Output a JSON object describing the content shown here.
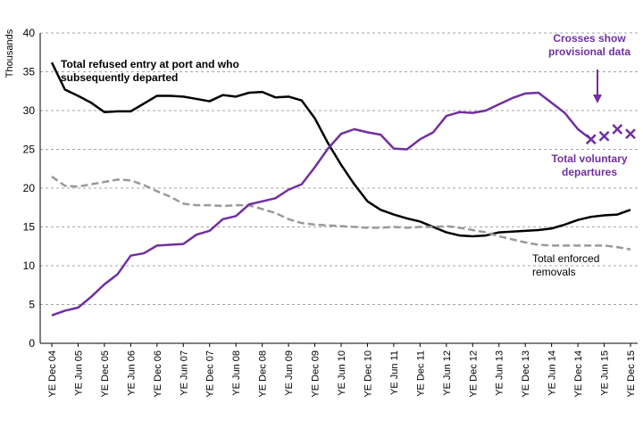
{
  "chart_data": {
    "type": "line",
    "y_label": "Thousands",
    "categories": [
      "YE Dec 04",
      null,
      "YE Jun 05",
      null,
      "YE Dec 05",
      null,
      "YE Jun 06",
      null,
      "YE Dec 06",
      null,
      "YE Jun 07",
      null,
      "YE Dec 07",
      null,
      "YE Jun 08",
      null,
      "YE Dec 08",
      null,
      "YE Jun 09",
      null,
      "YE Dec 09",
      null,
      "YE Jun 10",
      null,
      "YE Dec 10",
      null,
      "YE Jun 11",
      null,
      "YE Dec 11",
      null,
      "YE Jun 12",
      null,
      "YE Dec 12",
      null,
      "YE Jun 13",
      null,
      "YE Dec 13",
      null,
      "YE Jun 14",
      null,
      "YE Dec 14",
      null,
      "YE Jun 15",
      null,
      "YE Dec 15"
    ],
    "series": [
      {
        "color": "#000000",
        "style": "solid",
        "values": [
          36.2,
          32.7,
          31.9,
          31.0,
          29.8,
          29.9,
          29.9,
          30.9,
          31.9,
          31.9,
          31.8,
          31.5,
          31.2,
          32.0,
          31.8,
          32.3,
          32.4,
          31.7,
          31.8,
          31.3,
          29.0,
          25.8,
          23.0,
          20.5,
          18.3,
          17.2,
          16.6,
          16.1,
          15.7,
          15.0,
          14.3,
          13.9,
          13.8,
          13.9,
          14.3,
          14.4,
          14.5,
          14.6,
          14.8,
          15.3,
          15.9,
          16.3,
          16.5,
          16.6,
          17.2
        ]
      },
      {
        "color": "#999999",
        "style": "dashed",
        "values": [
          21.5,
          20.3,
          20.2,
          20.5,
          20.8,
          21.1,
          21.0,
          20.4,
          19.6,
          18.9,
          18.0,
          17.8,
          17.8,
          17.7,
          17.8,
          17.8,
          17.3,
          16.8,
          16.0,
          15.5,
          15.3,
          15.2,
          15.1,
          15.0,
          14.9,
          14.9,
          15.0,
          14.9,
          15.0,
          15.0,
          15.1,
          14.9,
          14.6,
          14.3,
          13.8,
          13.4,
          13.0,
          12.7,
          12.6,
          12.6,
          12.6,
          12.6,
          12.6,
          12.4,
          12.1
        ]
      },
      {
        "color": "#7030a0",
        "style": "solid",
        "values": [
          3.6,
          4.2,
          4.6,
          6.0,
          7.6,
          8.9,
          11.3,
          11.6,
          12.6,
          12.7,
          12.8,
          14.0,
          14.5,
          16.0,
          16.4,
          17.9,
          18.3,
          18.7,
          19.8,
          20.5,
          22.7,
          25.1,
          27.0,
          27.6,
          27.2,
          26.9,
          25.1,
          25.0,
          26.3,
          27.2,
          29.3,
          29.8,
          29.7,
          30.0,
          30.8,
          31.6,
          32.2,
          32.3,
          31.0,
          29.7,
          27.6,
          26.3,
          null,
          null,
          null
        ]
      },
      {
        "color": "#7030a0",
        "style": "cross",
        "values": [
          null,
          null,
          null,
          null,
          null,
          null,
          null,
          null,
          null,
          null,
          null,
          null,
          null,
          null,
          null,
          null,
          null,
          null,
          null,
          null,
          null,
          null,
          null,
          null,
          null,
          null,
          null,
          null,
          null,
          null,
          null,
          null,
          null,
          null,
          null,
          null,
          null,
          null,
          null,
          null,
          null,
          26.3,
          26.7,
          27.6,
          27.0
        ]
      }
    ],
    "annotations": [
      {
        "lines": [
          "Total refused entry at port and who",
          "subsequently departed"
        ],
        "color": "#000000"
      },
      {
        "lines": [
          "Crosses  show",
          "provisional data"
        ],
        "color": "#7030a0"
      },
      {
        "lines": [
          "Total voluntary",
          "departures"
        ],
        "color": "#7030a0"
      },
      {
        "lines": [
          "Total enforced",
          "removals"
        ],
        "color": "#000000"
      }
    ],
    "ylim": [
      0,
      40
    ],
    "yticks": [
      0,
      5,
      10,
      15,
      20,
      25,
      30,
      35,
      40
    ],
    "grid": true
  }
}
